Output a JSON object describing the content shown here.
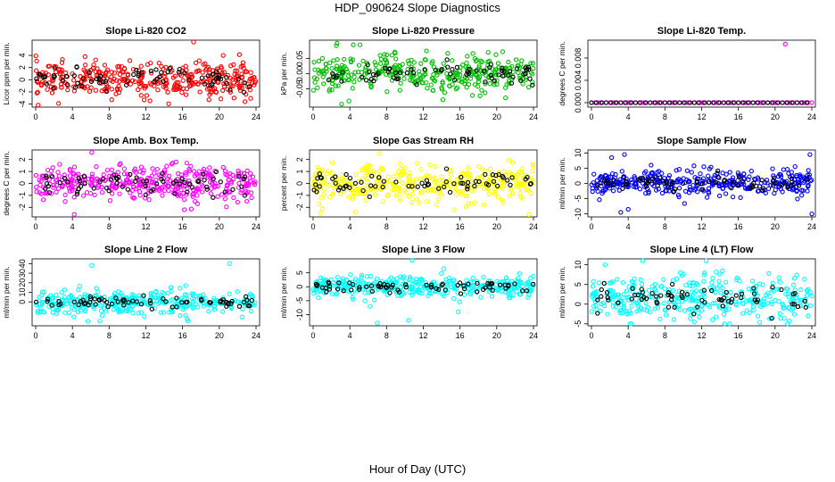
{
  "title": "HDP_090624  Slope Diagnostics",
  "xlabel": "Hour of Day (UTC)",
  "chart_data": [
    {
      "type": "scatter",
      "title": "Slope Li-820 CO2",
      "ylabel": "Licor ppm per min.",
      "xlim": [
        0,
        24
      ],
      "xticks": [
        0,
        4,
        8,
        12,
        16,
        20,
        24
      ],
      "ylim": [
        -4.5,
        6.5
      ],
      "yticks": [
        -4,
        -2,
        0,
        2,
        4
      ],
      "ytick_labels": [
        "-4",
        "-2",
        "0",
        "2",
        "4"
      ],
      "color": "#ff0000",
      "spread": 1.4,
      "center": 0.1,
      "outliers": [
        [
          17.2,
          6.2
        ],
        [
          2.5,
          -3.9
        ],
        [
          12.1,
          -2.6
        ],
        [
          22.8,
          -3.6
        ]
      ]
    },
    {
      "type": "scatter",
      "title": "Slope Li-820 Pressure",
      "ylabel": "kPa per min.",
      "xlim": [
        0,
        24
      ],
      "xticks": [
        0,
        4,
        8,
        12,
        16,
        20,
        24
      ],
      "ylim": [
        -0.11,
        0.11
      ],
      "yticks": [
        -0.05,
        0,
        0.05
      ],
      "ytick_labels": [
        "-0.05",
        "0.00",
        "0.05"
      ],
      "color": "#00c000",
      "spread": 0.03,
      "center": 0.0,
      "outliers": [
        [
          2.6,
          0.1
        ],
        [
          5.1,
          0.095
        ],
        [
          3.1,
          -0.1
        ],
        [
          3.9,
          -0.09
        ],
        [
          7.3,
          0.06
        ]
      ]
    },
    {
      "type": "scatter",
      "title": "Slope Li-820 Temp.",
      "ylabel": "degrees C per min.",
      "xlim": [
        0,
        24
      ],
      "xticks": [
        0,
        4,
        8,
        12,
        16,
        20,
        24
      ],
      "ylim": [
        -0.0008,
        0.0112
      ],
      "yticks": [
        0,
        0.004,
        0.008
      ],
      "ytick_labels": [
        "0.000",
        "0.004",
        "0.008"
      ],
      "color": "#ff00ff",
      "spread": 0,
      "center": 0.0,
      "outliers": [
        [
          21.1,
          0.0105
        ]
      ]
    },
    {
      "type": "scatter",
      "title": "Slope Amb. Box Temp.",
      "ylabel": "degrees C per min.",
      "xlim": [
        0,
        24
      ],
      "xticks": [
        0,
        4,
        8,
        12,
        16,
        20,
        24
      ],
      "ylim": [
        -2.8,
        2.8
      ],
      "yticks": [
        -2,
        -1,
        0,
        1,
        2
      ],
      "ytick_labels": [
        "-2",
        "-1",
        "0",
        "1",
        "2"
      ],
      "color": "#ff00ff",
      "spread": 0.75,
      "center": 0.0,
      "outliers": [
        [
          6.1,
          2.6
        ],
        [
          4.2,
          -2.6
        ],
        [
          16.2,
          -2.2
        ]
      ]
    },
    {
      "type": "scatter",
      "title": "Slope Gas Stream RH",
      "ylabel": "percent per min.",
      "xlim": [
        0,
        24
      ],
      "xticks": [
        0,
        4,
        8,
        12,
        16,
        20,
        24
      ],
      "ylim": [
        -2.8,
        2.8
      ],
      "yticks": [
        -2,
        -1,
        0,
        1,
        2
      ],
      "ytick_labels": [
        "-2",
        "-1",
        "0",
        "1",
        "2"
      ],
      "color": "#ffff00",
      "spread": 0.75,
      "center": 0.0,
      "outliers": [
        [
          7.2,
          2.5
        ],
        [
          23.5,
          -2.6
        ],
        [
          4.6,
          -2.4
        ]
      ]
    },
    {
      "type": "scatter",
      "title": "Slope Sample Flow",
      "ylabel": "ml/min per min.",
      "xlim": [
        0,
        24
      ],
      "xticks": [
        0,
        4,
        8,
        12,
        16,
        20,
        24
      ],
      "ylim": [
        -11,
        11
      ],
      "yticks": [
        -10,
        -5,
        0,
        5,
        10
      ],
      "ytick_labels": [
        "-10",
        "-5",
        "0",
        "5",
        "10"
      ],
      "color": "#0000ff",
      "spread": 2.2,
      "center": 0.0,
      "outliers": [
        [
          2.2,
          8.5
        ],
        [
          3.6,
          9.5
        ],
        [
          23.8,
          9.5
        ],
        [
          4.0,
          -8.5
        ],
        [
          3.2,
          -9.5
        ],
        [
          24.0,
          -10
        ],
        [
          6.5,
          6
        ]
      ]
    },
    {
      "type": "scatter",
      "title": "Slope Line 2 Flow",
      "ylabel": "ml/min per min.",
      "xlim": [
        0,
        24
      ],
      "xticks": [
        0,
        4,
        8,
        12,
        16,
        20,
        24
      ],
      "ylim": [
        -25,
        45
      ],
      "yticks": [
        0,
        10,
        20,
        30,
        40
      ],
      "ytick_labels": [
        "0",
        "10",
        "20",
        "30",
        "40"
      ],
      "color": "#00ffff",
      "spread": 6,
      "center": 0.0,
      "outliers": [
        [
          6.1,
          38
        ],
        [
          21.1,
          40
        ],
        [
          7.0,
          -20
        ],
        [
          16.5,
          -18
        ]
      ]
    },
    {
      "type": "scatter",
      "title": "Slope Line 3 Flow",
      "ylabel": "ml/min per min.",
      "xlim": [
        0,
        24
      ],
      "xticks": [
        0,
        4,
        8,
        12,
        16,
        20,
        24
      ],
      "ylim": [
        -14,
        10
      ],
      "yticks": [
        -10,
        -5,
        0,
        5
      ],
      "ytick_labels": [
        "-10",
        "-5",
        "0",
        "5"
      ],
      "color": "#00ffff",
      "spread": 1.8,
      "center": 0.0,
      "outliers": [
        [
          10.8,
          9.5
        ],
        [
          7.0,
          -13
        ],
        [
          10.4,
          -12
        ],
        [
          15.8,
          -9
        ],
        [
          6.2,
          -7
        ]
      ]
    },
    {
      "type": "scatter",
      "title": "Slope Line 4 (LT) Flow",
      "ylabel": "ml/min per min.",
      "xlim": [
        0,
        24
      ],
      "xticks": [
        0,
        4,
        8,
        12,
        16,
        20,
        24
      ],
      "ylim": [
        -5.5,
        11.5
      ],
      "yticks": [
        -5,
        0,
        5,
        10
      ],
      "ytick_labels": [
        "-5",
        "0",
        "5",
        "10"
      ],
      "color": "#00ffff",
      "spread": 2.8,
      "center": 1.5,
      "outliers": [
        [
          5.6,
          11
        ],
        [
          12.5,
          11
        ],
        [
          11.2,
          -4.5
        ],
        [
          4.2,
          -5
        ],
        [
          23.6,
          -3
        ],
        [
          1.5,
          10
        ]
      ]
    }
  ]
}
